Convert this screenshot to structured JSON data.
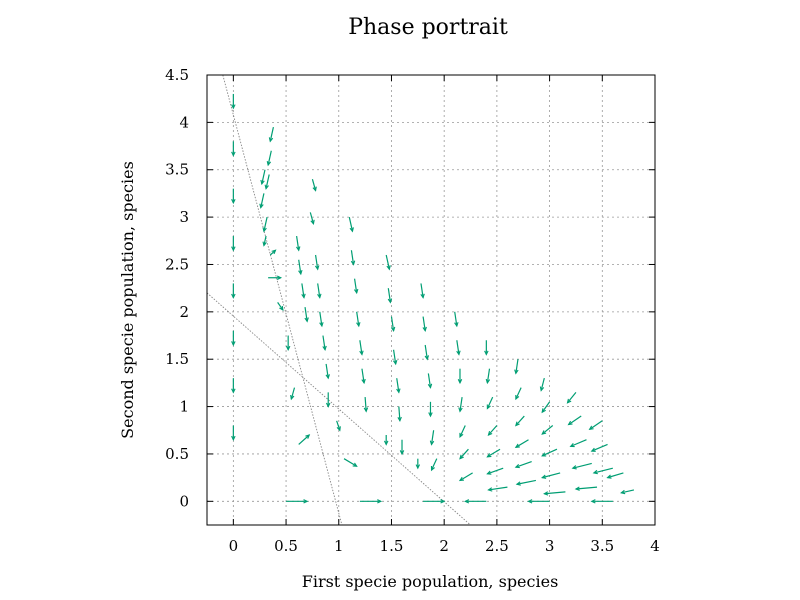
{
  "chart_data": {
    "type": "scatter",
    "subtype": "vector-field",
    "title": "Phase portrait",
    "xlabel": "First specie population, species",
    "ylabel": "Second specie population, species",
    "xlim": [
      -0.25,
      4.0
    ],
    "ylim": [
      -0.25,
      4.5
    ],
    "x_ticks": [
      "0",
      "0.5",
      "1",
      "1.5",
      "2",
      "2.5",
      "3",
      "3.5",
      "4"
    ],
    "y_ticks": [
      "0",
      "0.5",
      "1",
      "1.5",
      "2",
      "2.5",
      "3",
      "3.5",
      "4",
      "4.5"
    ],
    "x_tick_values": [
      0,
      0.5,
      1,
      1.5,
      2,
      2.5,
      3,
      3.5,
      4
    ],
    "y_tick_values": [
      0,
      0.5,
      1,
      1.5,
      2,
      2.5,
      3,
      3.5,
      4,
      4.5
    ],
    "grid": true,
    "colors": {
      "vectors": "#009e73",
      "nullclines": "#888888",
      "grid": "#999999"
    },
    "nullclines": [
      {
        "points": [
          [
            -0.1,
            4.5
          ],
          [
            1.03,
            -0.25
          ]
        ]
      },
      {
        "points": [
          [
            -0.25,
            2.2
          ],
          [
            2.25,
            -0.25
          ]
        ]
      }
    ],
    "vectors": [
      {
        "x": 0.0,
        "y": 4.3,
        "dx": 0.0,
        "dy": -0.15
      },
      {
        "x": 0.0,
        "y": 3.8,
        "dx": 0.0,
        "dy": -0.15
      },
      {
        "x": 0.0,
        "y": 3.3,
        "dx": 0.0,
        "dy": -0.15
      },
      {
        "x": 0.0,
        "y": 2.8,
        "dx": 0.0,
        "dy": -0.15
      },
      {
        "x": 0.0,
        "y": 2.3,
        "dx": 0.0,
        "dy": -0.15
      },
      {
        "x": 0.0,
        "y": 1.8,
        "dx": 0.0,
        "dy": -0.15
      },
      {
        "x": 0.0,
        "y": 1.3,
        "dx": 0.0,
        "dy": -0.15
      },
      {
        "x": 0.0,
        "y": 0.8,
        "dx": 0.0,
        "dy": -0.15
      },
      {
        "x": 0.5,
        "y": 0.0,
        "dx": 0.2,
        "dy": 0.0
      },
      {
        "x": 1.2,
        "y": 0.0,
        "dx": 0.2,
        "dy": 0.0
      },
      {
        "x": 1.8,
        "y": 0.0,
        "dx": 0.2,
        "dy": 0.0
      },
      {
        "x": 2.4,
        "y": 0.0,
        "dx": -0.2,
        "dy": 0.0
      },
      {
        "x": 3.0,
        "y": 0.0,
        "dx": -0.2,
        "dy": 0.0
      },
      {
        "x": 3.6,
        "y": 0.0,
        "dx": -0.2,
        "dy": 0.0
      },
      {
        "x": 0.38,
        "y": 3.95,
        "dx": -0.03,
        "dy": -0.15
      },
      {
        "x": 0.36,
        "y": 3.7,
        "dx": -0.03,
        "dy": -0.15
      },
      {
        "x": 0.34,
        "y": 3.45,
        "dx": -0.03,
        "dy": -0.15
      },
      {
        "x": 0.3,
        "y": 3.5,
        "dx": -0.03,
        "dy": -0.15
      },
      {
        "x": 0.29,
        "y": 3.25,
        "dx": -0.03,
        "dy": -0.15
      },
      {
        "x": 0.32,
        "y": 3.0,
        "dx": -0.03,
        "dy": -0.15
      },
      {
        "x": 0.31,
        "y": 2.8,
        "dx": -0.02,
        "dy": -0.1
      },
      {
        "x": 0.35,
        "y": 2.6,
        "dx": 0.05,
        "dy": 0.05
      },
      {
        "x": 0.33,
        "y": 2.36,
        "dx": 0.12,
        "dy": 0.0
      },
      {
        "x": 0.42,
        "y": 2.1,
        "dx": 0.05,
        "dy": -0.08
      },
      {
        "x": 0.52,
        "y": 1.75,
        "dx": 0.0,
        "dy": -0.15
      },
      {
        "x": 0.58,
        "y": 1.2,
        "dx": -0.03,
        "dy": -0.12
      },
      {
        "x": 0.62,
        "y": 0.6,
        "dx": 0.1,
        "dy": 0.1
      },
      {
        "x": 0.6,
        "y": 2.8,
        "dx": 0.02,
        "dy": -0.15
      },
      {
        "x": 0.62,
        "y": 2.55,
        "dx": 0.02,
        "dy": -0.15
      },
      {
        "x": 0.65,
        "y": 2.3,
        "dx": 0.02,
        "dy": -0.15
      },
      {
        "x": 0.68,
        "y": 2.05,
        "dx": 0.02,
        "dy": -0.15
      },
      {
        "x": 0.75,
        "y": 3.4,
        "dx": 0.03,
        "dy": -0.12
      },
      {
        "x": 0.73,
        "y": 3.05,
        "dx": 0.03,
        "dy": -0.12
      },
      {
        "x": 0.78,
        "y": 2.6,
        "dx": 0.02,
        "dy": -0.15
      },
      {
        "x": 0.8,
        "y": 2.3,
        "dx": 0.02,
        "dy": -0.15
      },
      {
        "x": 0.82,
        "y": 2.0,
        "dx": 0.02,
        "dy": -0.15
      },
      {
        "x": 0.85,
        "y": 1.75,
        "dx": 0.02,
        "dy": -0.15
      },
      {
        "x": 0.88,
        "y": 1.45,
        "dx": 0.02,
        "dy": -0.15
      },
      {
        "x": 0.9,
        "y": 1.15,
        "dx": 0.0,
        "dy": -0.15
      },
      {
        "x": 0.98,
        "y": 0.85,
        "dx": 0.03,
        "dy": -0.1
      },
      {
        "x": 1.05,
        "y": 0.45,
        "dx": 0.12,
        "dy": -0.08
      },
      {
        "x": 1.1,
        "y": 3.0,
        "dx": 0.03,
        "dy": -0.15
      },
      {
        "x": 1.12,
        "y": 2.65,
        "dx": 0.02,
        "dy": -0.15
      },
      {
        "x": 1.15,
        "y": 2.35,
        "dx": 0.02,
        "dy": -0.15
      },
      {
        "x": 1.17,
        "y": 2.0,
        "dx": 0.02,
        "dy": -0.15
      },
      {
        "x": 1.2,
        "y": 1.7,
        "dx": 0.02,
        "dy": -0.15
      },
      {
        "x": 1.22,
        "y": 1.4,
        "dx": 0.02,
        "dy": -0.15
      },
      {
        "x": 1.25,
        "y": 1.1,
        "dx": 0.01,
        "dy": -0.15
      },
      {
        "x": 1.45,
        "y": 2.6,
        "dx": 0.03,
        "dy": -0.15
      },
      {
        "x": 1.47,
        "y": 2.25,
        "dx": 0.02,
        "dy": -0.15
      },
      {
        "x": 1.5,
        "y": 1.95,
        "dx": 0.02,
        "dy": -0.15
      },
      {
        "x": 1.52,
        "y": 1.6,
        "dx": 0.02,
        "dy": -0.15
      },
      {
        "x": 1.55,
        "y": 1.3,
        "dx": 0.02,
        "dy": -0.15
      },
      {
        "x": 1.57,
        "y": 1.0,
        "dx": 0.01,
        "dy": -0.15
      },
      {
        "x": 1.6,
        "y": 0.65,
        "dx": 0.0,
        "dy": -0.15
      },
      {
        "x": 1.45,
        "y": 0.7,
        "dx": 0.0,
        "dy": -0.1
      },
      {
        "x": 1.78,
        "y": 2.3,
        "dx": 0.02,
        "dy": -0.15
      },
      {
        "x": 1.8,
        "y": 1.95,
        "dx": 0.02,
        "dy": -0.15
      },
      {
        "x": 1.82,
        "y": 1.65,
        "dx": 0.02,
        "dy": -0.15
      },
      {
        "x": 1.85,
        "y": 1.35,
        "dx": 0.02,
        "dy": -0.15
      },
      {
        "x": 1.87,
        "y": 1.05,
        "dx": 0.0,
        "dy": -0.15
      },
      {
        "x": 1.9,
        "y": 0.75,
        "dx": -0.02,
        "dy": -0.15
      },
      {
        "x": 1.93,
        "y": 0.45,
        "dx": -0.05,
        "dy": -0.12
      },
      {
        "x": 1.75,
        "y": 0.45,
        "dx": 0.0,
        "dy": -0.1
      },
      {
        "x": 2.1,
        "y": 2.0,
        "dx": 0.02,
        "dy": -0.15
      },
      {
        "x": 2.12,
        "y": 1.7,
        "dx": 0.02,
        "dy": -0.15
      },
      {
        "x": 2.15,
        "y": 1.4,
        "dx": 0.0,
        "dy": -0.15
      },
      {
        "x": 2.17,
        "y": 1.1,
        "dx": -0.02,
        "dy": -0.15
      },
      {
        "x": 2.2,
        "y": 0.8,
        "dx": -0.05,
        "dy": -0.12
      },
      {
        "x": 2.23,
        "y": 0.55,
        "dx": -0.08,
        "dy": -0.1
      },
      {
        "x": 2.27,
        "y": 0.3,
        "dx": -0.12,
        "dy": -0.08
      },
      {
        "x": 2.4,
        "y": 1.7,
        "dx": 0.0,
        "dy": -0.15
      },
      {
        "x": 2.43,
        "y": 1.4,
        "dx": -0.02,
        "dy": -0.15
      },
      {
        "x": 2.46,
        "y": 1.1,
        "dx": -0.05,
        "dy": -0.12
      },
      {
        "x": 2.5,
        "y": 0.8,
        "dx": -0.08,
        "dy": -0.1
      },
      {
        "x": 2.53,
        "y": 0.55,
        "dx": -0.12,
        "dy": -0.08
      },
      {
        "x": 2.56,
        "y": 0.35,
        "dx": -0.15,
        "dy": -0.06
      },
      {
        "x": 2.6,
        "y": 0.15,
        "dx": -0.18,
        "dy": -0.03
      },
      {
        "x": 2.7,
        "y": 1.5,
        "dx": -0.02,
        "dy": -0.15
      },
      {
        "x": 2.73,
        "y": 1.2,
        "dx": -0.05,
        "dy": -0.12
      },
      {
        "x": 2.76,
        "y": 0.9,
        "dx": -0.08,
        "dy": -0.1
      },
      {
        "x": 2.8,
        "y": 0.65,
        "dx": -0.12,
        "dy": -0.08
      },
      {
        "x": 2.83,
        "y": 0.42,
        "dx": -0.15,
        "dy": -0.06
      },
      {
        "x": 2.87,
        "y": 0.22,
        "dx": -0.18,
        "dy": -0.04
      },
      {
        "x": 2.95,
        "y": 1.3,
        "dx": -0.03,
        "dy": -0.13
      },
      {
        "x": 3.0,
        "y": 1.05,
        "dx": -0.07,
        "dy": -0.11
      },
      {
        "x": 3.03,
        "y": 0.8,
        "dx": -0.1,
        "dy": -0.09
      },
      {
        "x": 3.07,
        "y": 0.55,
        "dx": -0.14,
        "dy": -0.07
      },
      {
        "x": 3.1,
        "y": 0.3,
        "dx": -0.17,
        "dy": -0.05
      },
      {
        "x": 3.15,
        "y": 0.1,
        "dx": -0.2,
        "dy": -0.02
      },
      {
        "x": 3.25,
        "y": 1.15,
        "dx": -0.08,
        "dy": -0.11
      },
      {
        "x": 3.3,
        "y": 0.9,
        "dx": -0.12,
        "dy": -0.09
      },
      {
        "x": 3.35,
        "y": 0.65,
        "dx": -0.15,
        "dy": -0.07
      },
      {
        "x": 3.4,
        "y": 0.4,
        "dx": -0.18,
        "dy": -0.05
      },
      {
        "x": 3.45,
        "y": 0.15,
        "dx": -0.2,
        "dy": -0.02
      },
      {
        "x": 3.5,
        "y": 0.85,
        "dx": -0.12,
        "dy": -0.09
      },
      {
        "x": 3.55,
        "y": 0.6,
        "dx": -0.15,
        "dy": -0.07
      },
      {
        "x": 3.6,
        "y": 0.35,
        "dx": -0.18,
        "dy": -0.05
      },
      {
        "x": 3.7,
        "y": 0.3,
        "dx": -0.15,
        "dy": -0.05
      },
      {
        "x": 3.8,
        "y": 0.12,
        "dx": -0.12,
        "dy": -0.03
      }
    ]
  }
}
